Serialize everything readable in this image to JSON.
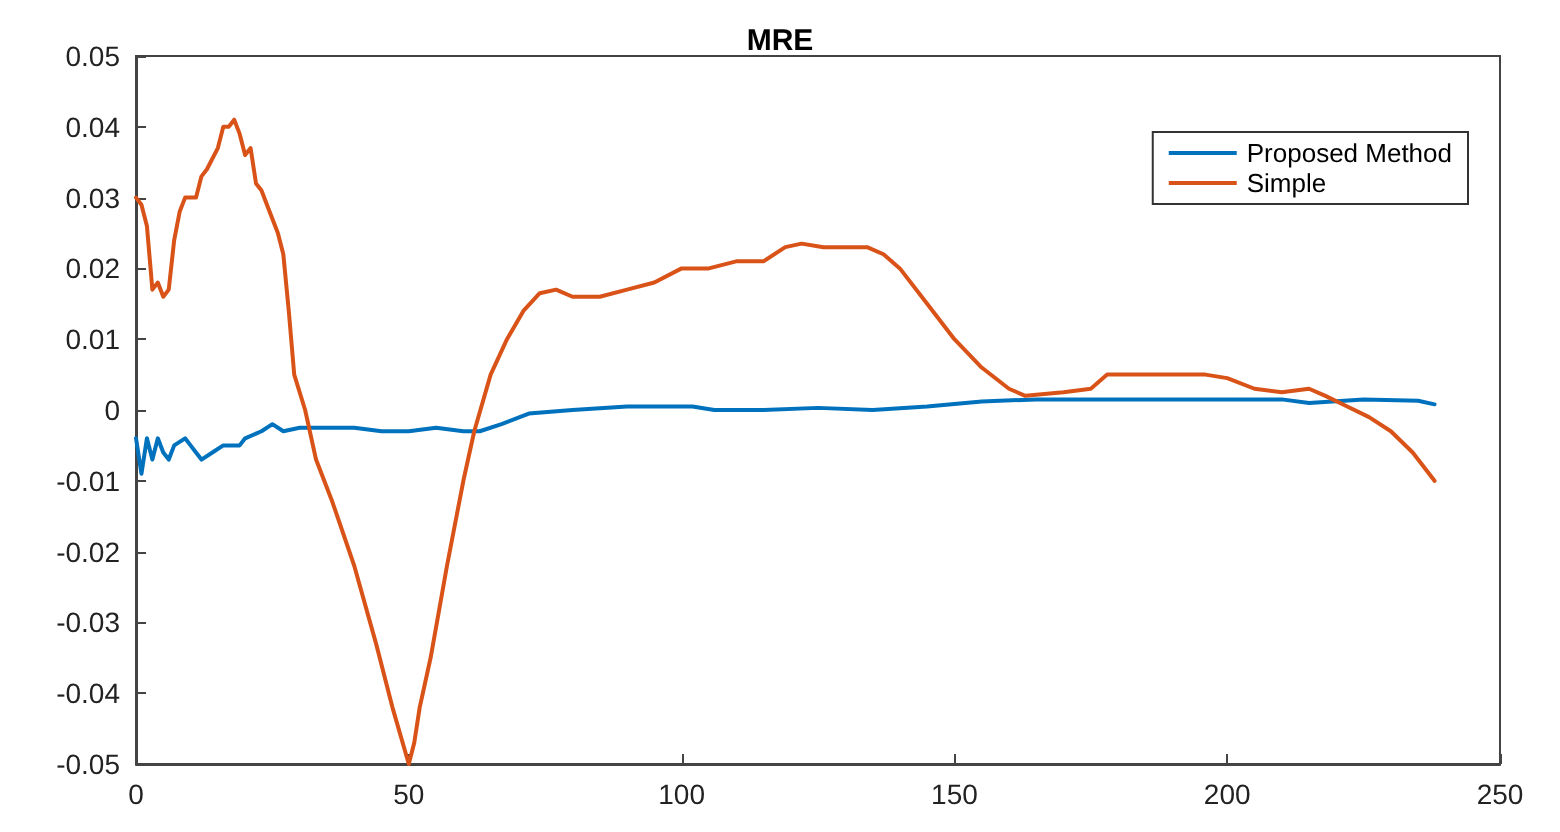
{
  "chart_data": {
    "type": "line",
    "title": "MRE",
    "xlim": [
      0,
      250
    ],
    "xticks": [
      0,
      50,
      100,
      150,
      200,
      250
    ],
    "ylim": [
      -0.05,
      0.05
    ],
    "yticks": [
      -0.05,
      -0.04,
      -0.03,
      -0.02,
      -0.01,
      0,
      0.01,
      0.02,
      0.03,
      0.04,
      0.05
    ],
    "grid": false,
    "legend": "top right",
    "marker": "none",
    "line_style": "solid",
    "series": [
      {
        "name": "Proposed Method",
        "color": "#0072bd",
        "x": [
          0,
          1,
          2,
          3,
          4,
          5,
          6,
          7,
          9,
          10,
          11,
          12,
          14,
          16,
          19,
          20,
          23,
          25,
          27,
          30,
          35,
          40,
          45,
          50,
          55,
          60,
          63,
          67,
          72,
          80,
          90,
          100,
          102,
          106,
          115,
          125,
          135,
          145,
          155,
          165,
          180,
          200,
          210,
          215,
          225,
          235,
          238
        ],
        "values": [
          -0.004,
          -0.009,
          -0.004,
          -0.007,
          -0.004,
          -0.006,
          -0.007,
          -0.005,
          -0.004,
          -0.005,
          -0.006,
          -0.007,
          -0.006,
          -0.005,
          -0.005,
          -0.004,
          -0.003,
          -0.002,
          -0.003,
          -0.0025,
          -0.0025,
          -0.0025,
          -0.003,
          -0.003,
          -0.0025,
          -0.003,
          -0.003,
          -0.002,
          -0.0005,
          0,
          0.0005,
          0.0005,
          0.0005,
          0,
          0,
          0.0003,
          0,
          0.0005,
          0.0012,
          0.0015,
          0.0015,
          0.0015,
          0.0015,
          0.001,
          0.0015,
          0.0013,
          0.0008
        ]
      },
      {
        "name": "Simple",
        "color": "#d95319",
        "x": [
          0,
          1,
          2,
          3,
          4,
          5,
          6,
          7,
          8,
          9,
          11,
          12,
          13,
          15,
          16,
          17,
          18,
          19,
          20,
          21,
          22,
          23,
          24,
          26,
          27,
          28,
          29,
          31,
          33,
          36,
          40,
          44,
          47,
          50,
          51,
          52,
          54,
          57,
          60,
          62,
          65,
          68,
          71,
          74,
          77,
          80,
          85,
          90,
          95,
          100,
          105,
          110,
          115,
          119,
          122,
          126,
          130,
          134,
          137,
          140,
          145,
          150,
          155,
          160,
          163,
          170,
          175,
          178,
          182,
          190,
          196,
          200,
          205,
          210,
          215,
          218,
          222,
          226,
          230,
          234,
          238
        ],
        "values": [
          0.03,
          0.029,
          0.026,
          0.017,
          0.018,
          0.016,
          0.017,
          0.024,
          0.028,
          0.03,
          0.03,
          0.033,
          0.034,
          0.037,
          0.04,
          0.04,
          0.041,
          0.039,
          0.036,
          0.037,
          0.032,
          0.031,
          0.029,
          0.025,
          0.022,
          0.014,
          0.005,
          0,
          -0.007,
          -0.013,
          -0.022,
          -0.033,
          -0.042,
          -0.05,
          -0.047,
          -0.042,
          -0.035,
          -0.022,
          -0.01,
          -0.003,
          0.005,
          0.01,
          0.014,
          0.0165,
          0.017,
          0.016,
          0.016,
          0.017,
          0.018,
          0.02,
          0.02,
          0.021,
          0.021,
          0.023,
          0.0235,
          0.023,
          0.023,
          0.023,
          0.022,
          0.02,
          0.015,
          0.01,
          0.006,
          0.003,
          0.002,
          0.0025,
          0.003,
          0.005,
          0.005,
          0.005,
          0.005,
          0.0045,
          0.003,
          0.0025,
          0.003,
          0.002,
          0.0005,
          -0.001,
          -0.003,
          -0.006,
          -0.01
        ]
      }
    ]
  }
}
